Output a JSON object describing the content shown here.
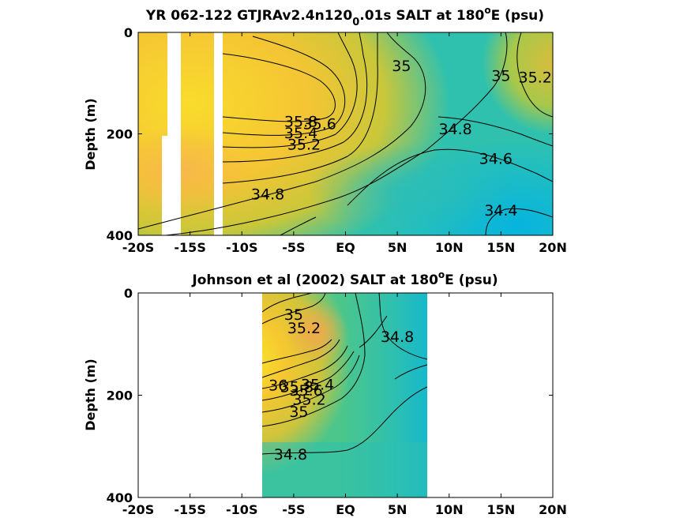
{
  "chart_data": [
    {
      "type": "heatmap",
      "title_main": "YR 062-122 GTJRAv2.4n120",
      "title_sub": "0",
      "title_rest": ".01s SALT at 180",
      "title_sup": "o",
      "title_end": "E (psu)",
      "ylabel": "Depth (m)",
      "x_ticks": [
        "-20S",
        "-15S",
        "-10S",
        "-5S",
        "EQ",
        "5N",
        "10N",
        "15N",
        "20N"
      ],
      "y_ticks": [
        "0",
        "200",
        "400"
      ],
      "xlim": [
        -20,
        20
      ],
      "ylim": [
        0,
        400
      ],
      "colormap": [
        "#0bb5d6",
        "#25c1b0",
        "#6ecb62",
        "#d4c43a",
        "#f6c730",
        "#f8dd2c"
      ],
      "data_gaps_lat": [
        [
          -17.8,
          -16.4
        ],
        [
          -12.8,
          -12.0
        ]
      ],
      "contour_labels": [
        {
          "text": "35.8",
          "lat": -4.3,
          "depth": 175
        },
        {
          "text": "35.6",
          "lat": -2.5,
          "depth": 180
        },
        {
          "text": "35.4",
          "lat": -4.3,
          "depth": 198
        },
        {
          "text": "35.2",
          "lat": -4.0,
          "depth": 220
        },
        {
          "text": "35",
          "lat": 5.4,
          "depth": 65
        },
        {
          "text": "35",
          "lat": 15.0,
          "depth": 85
        },
        {
          "text": "35.2",
          "lat": 18.3,
          "depth": 88
        },
        {
          "text": "34.8",
          "lat": 10.6,
          "depth": 190
        },
        {
          "text": "34.6",
          "lat": 14.5,
          "depth": 248
        },
        {
          "text": "34.8",
          "lat": -7.5,
          "depth": 318
        },
        {
          "text": "34.4",
          "lat": 15.0,
          "depth": 350
        }
      ]
    },
    {
      "type": "heatmap",
      "title_main": "Johnson et al (2002) SALT at 180",
      "title_sup": "o",
      "title_end": "E (psu)",
      "ylabel": "Depth (m)",
      "x_ticks": [
        "-20S",
        "-15S",
        "-10S",
        "-5S",
        "EQ",
        "5N",
        "10N",
        "15N",
        "20N"
      ],
      "y_ticks": [
        "0",
        "200",
        "400"
      ],
      "xlim": [
        -20,
        20
      ],
      "ylim": [
        0,
        400
      ],
      "data_lat_range": [
        -8,
        8
      ],
      "contour_labels": [
        {
          "text": "35",
          "lat": -5.0,
          "depth": 42
        },
        {
          "text": "35.2",
          "lat": -4.0,
          "depth": 68
        },
        {
          "text": "34.8",
          "lat": 5.0,
          "depth": 85
        },
        {
          "text": "36",
          "lat": -6.5,
          "depth": 180
        },
        {
          "text": "35.8",
          "lat": -4.7,
          "depth": 183
        },
        {
          "text": "35.6",
          "lat": -3.8,
          "depth": 190
        },
        {
          "text": "35.4",
          "lat": -2.7,
          "depth": 178
        },
        {
          "text": "35.2",
          "lat": -3.5,
          "depth": 208
        },
        {
          "text": "35",
          "lat": -4.5,
          "depth": 232
        },
        {
          "text": "34.8",
          "lat": -5.3,
          "depth": 315
        }
      ]
    }
  ]
}
